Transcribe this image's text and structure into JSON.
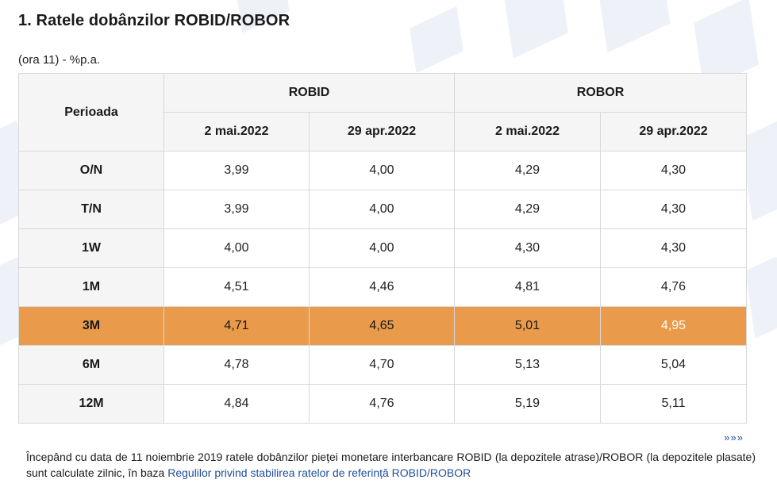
{
  "page": {
    "title": "1. Ratele dobânzilor ROBID/ROBOR",
    "subtitle": "(ora 11) - %p.a."
  },
  "table": {
    "period_header": "Perioada",
    "groups": [
      "ROBID",
      "ROBOR"
    ],
    "dates": [
      "2 mai.2022",
      "29 apr.2022",
      "2 mai.2022",
      "29 apr.2022"
    ],
    "rows": [
      {
        "period": "O/N",
        "values": [
          "3,99",
          "4,00",
          "4,29",
          "4,30"
        ]
      },
      {
        "period": "T/N",
        "values": [
          "3,99",
          "4,00",
          "4,29",
          "4,30"
        ]
      },
      {
        "period": "1W",
        "values": [
          "4,00",
          "4,00",
          "4,30",
          "4,30"
        ]
      },
      {
        "period": "1M",
        "values": [
          "4,51",
          "4,46",
          "4,81",
          "4,76"
        ]
      },
      {
        "period": "3M",
        "values": [
          "4,71",
          "4,65",
          "5,01",
          "4,95"
        ],
        "highlighted": true
      },
      {
        "period": "6M",
        "values": [
          "4,78",
          "4,70",
          "5,13",
          "5,04"
        ]
      },
      {
        "period": "12M",
        "values": [
          "4,84",
          "4,76",
          "5,19",
          "5,11"
        ]
      }
    ],
    "highlight_color": "#e99a4a"
  },
  "more_link": "»»»",
  "footnote": {
    "text": "Începând cu data de 11 noiembrie 2019 ratele dobânzilor pieței monetare interbancare ROBID (la depozitele atrase)/ROBOR (la depozitele plasate) sunt calculate zilnic, în baza ",
    "link_text": "Regulilor privind stabilirea ratelor de referință ROBID/ROBOR"
  }
}
